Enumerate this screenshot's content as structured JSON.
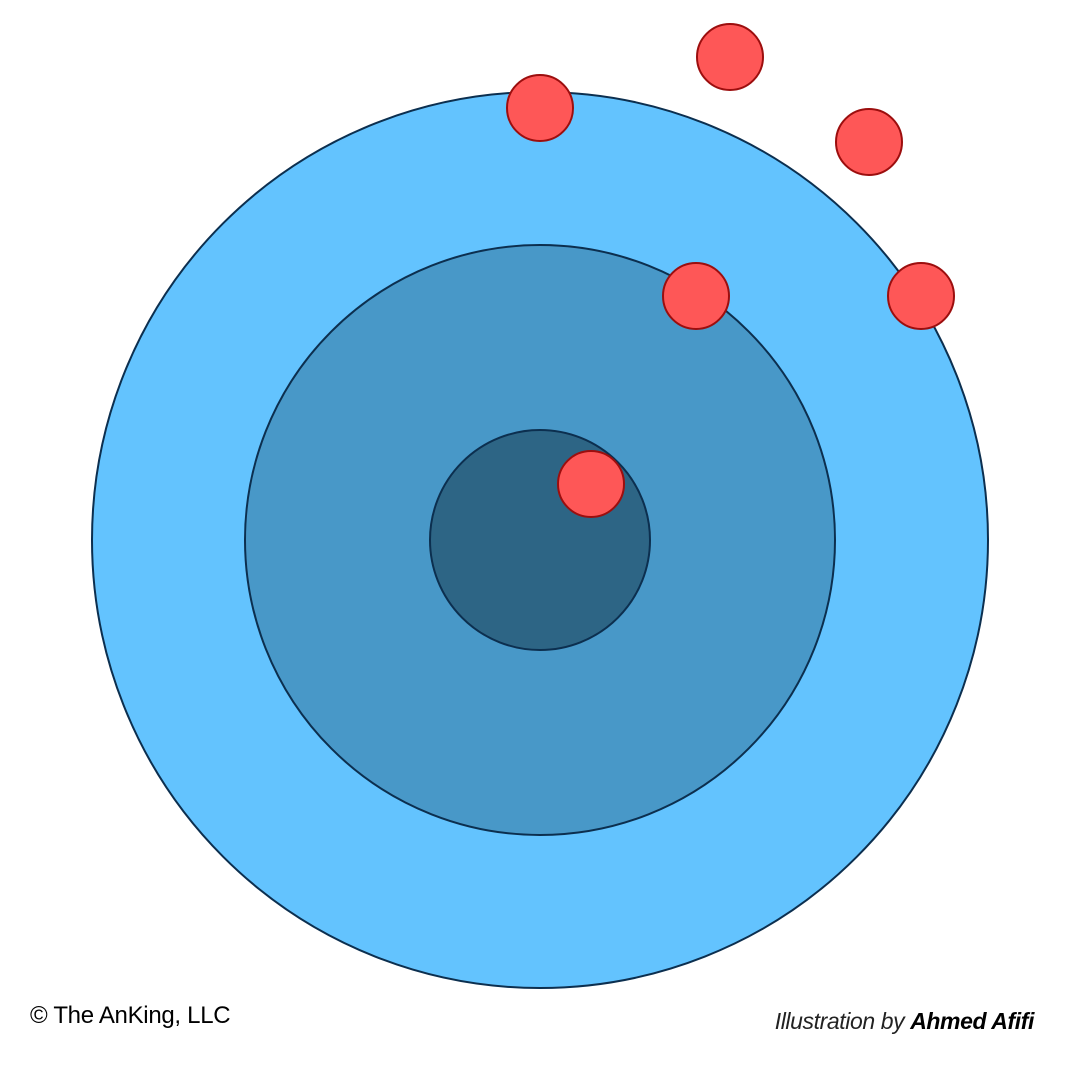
{
  "colors": {
    "background": "#ffffff",
    "outer_ring": "#63c3fe",
    "middle_ring": "#4898c8",
    "inner_core": "#2d6585",
    "ring_stroke": "#0c2f4f",
    "particle_fill": "#fe5757",
    "particle_stroke": "#9c0e0e"
  },
  "icons": {
    "particle": "red-circle-dot"
  },
  "footer": {
    "copyright": "© The AnKing, LLC",
    "credit_prefix": "Illustration by ",
    "credit_author": "Ahmed Afifi"
  }
}
